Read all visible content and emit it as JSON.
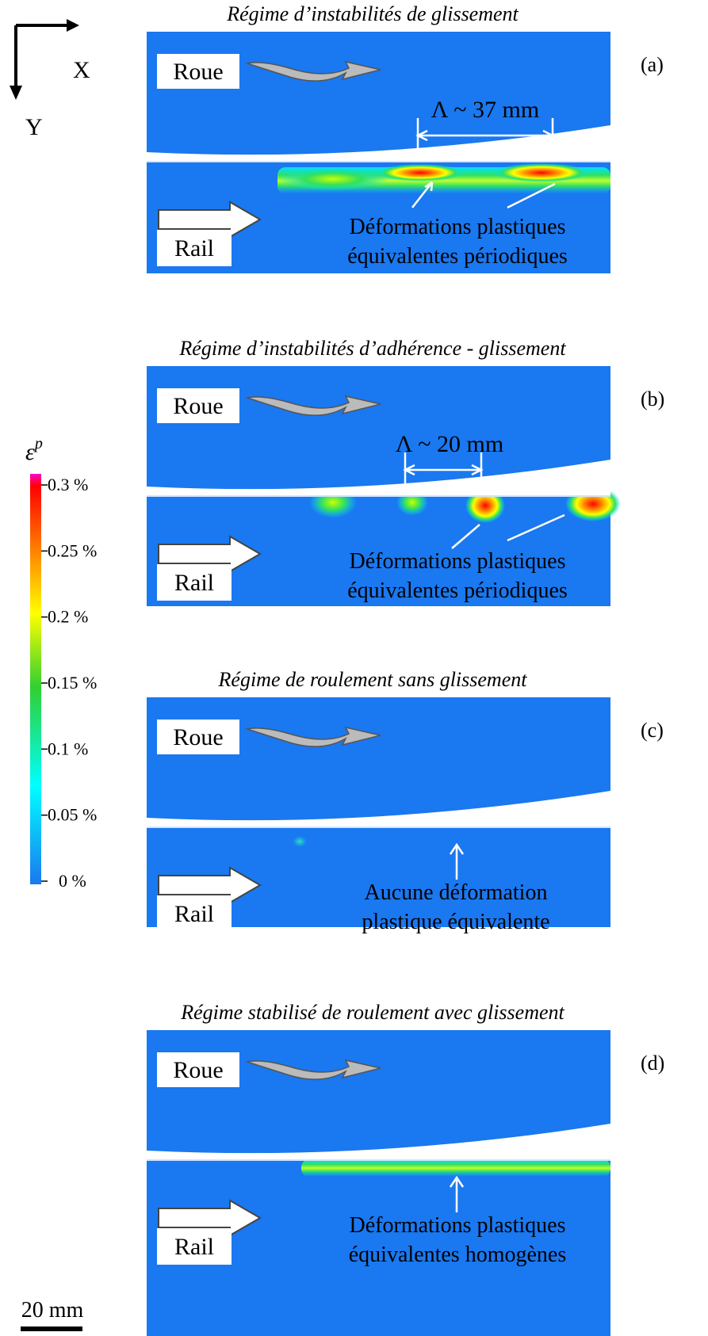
{
  "axes": {
    "x": "X",
    "y": "Y"
  },
  "panels": [
    {
      "title": "Régime d’instabilités de glissement",
      "label": "(a)",
      "wheel": "Roue",
      "rail": "Rail",
      "wavelength": "Λ ~ 37 mm",
      "annotation": [
        "Déformations plastiques",
        "équivalentes périodiques"
      ]
    },
    {
      "title": "Régime d’instabilités d’adhérence - glissement",
      "label": "(b)",
      "wheel": "Roue",
      "rail": "Rail",
      "wavelength": "Λ ~ 20 mm",
      "annotation": [
        "Déformations plastiques",
        "équivalentes périodiques"
      ]
    },
    {
      "title": "Régime de roulement sans glissement",
      "label": "(c)",
      "wheel": "Roue",
      "rail": "Rail",
      "annotation": [
        "Aucune déformation",
        "plastique équivalente"
      ]
    },
    {
      "title": "Régime stabilisé de roulement avec glissement",
      "label": "(d)",
      "wheel": "Roue",
      "rail": "Rail",
      "annotation": [
        "Déformations plastiques",
        "équivalentes homogènes"
      ]
    }
  ],
  "colorbar": {
    "label": "ε",
    "label_sup": "p",
    "ticks": [
      "0.3 %",
      "0.25 %",
      "0.2 %",
      "0.15 %",
      "0.1 %",
      "0.05 %",
      "0 %"
    ]
  },
  "scale_bar": "20 mm"
}
